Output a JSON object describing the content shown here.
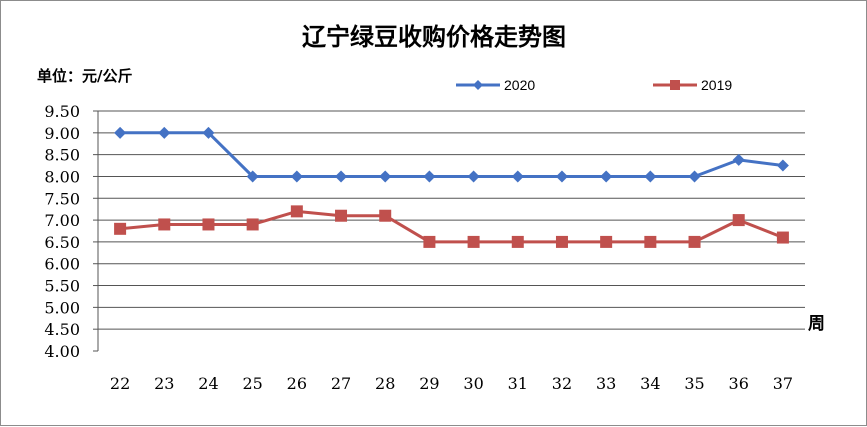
{
  "chart_data": {
    "type": "line",
    "title": "辽宁绿豆收购价格走势图",
    "unit_label": "单位：元/公斤",
    "xlabel": "周",
    "ylabel": "",
    "categories": [
      "22",
      "23",
      "24",
      "25",
      "26",
      "27",
      "28",
      "29",
      "30",
      "31",
      "32",
      "33",
      "34",
      "35",
      "36",
      "37"
    ],
    "ylim": [
      4.0,
      9.5
    ],
    "yticks": [
      "4.00",
      "4.50",
      "5.00",
      "5.50",
      "6.00",
      "6.50",
      "7.00",
      "7.50",
      "8.00",
      "8.50",
      "9.00",
      "9.50"
    ],
    "grid": true,
    "legend_position": "top-right",
    "series": [
      {
        "name": "2020",
        "color": "#4472c4",
        "marker": "diamond",
        "values": [
          9.0,
          9.0,
          9.0,
          8.0,
          8.0,
          8.0,
          8.0,
          8.0,
          8.0,
          8.0,
          8.0,
          8.0,
          8.0,
          8.0,
          8.38,
          8.25
        ]
      },
      {
        "name": "2019",
        "color": "#c0504d",
        "marker": "square",
        "values": [
          6.8,
          6.9,
          6.9,
          6.9,
          7.2,
          7.1,
          7.1,
          6.5,
          6.5,
          6.5,
          6.5,
          6.5,
          6.5,
          6.5,
          7.0,
          6.6
        ]
      }
    ]
  }
}
